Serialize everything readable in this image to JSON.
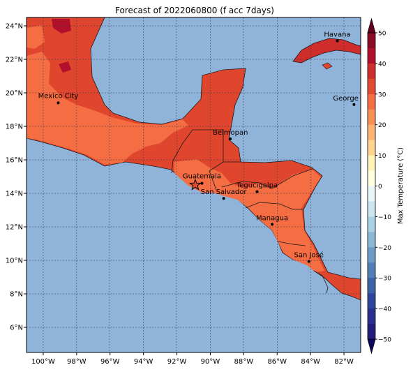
{
  "title": "Forecast of 2022060800 (f acc 7days)",
  "map": {
    "lon_range": [
      -101,
      -81
    ],
    "lat_range": [
      4.5,
      24.5
    ],
    "x_ticks": [
      {
        "value": -100,
        "label": "100°W"
      },
      {
        "value": -98,
        "label": "98°W"
      },
      {
        "value": -96,
        "label": "96°W"
      },
      {
        "value": -94,
        "label": "94°W"
      },
      {
        "value": -92,
        "label": "92°W"
      },
      {
        "value": -90,
        "label": "90°W"
      },
      {
        "value": -88,
        "label": "88°W"
      },
      {
        "value": -86,
        "label": "86°W"
      },
      {
        "value": -84,
        "label": "84°W"
      },
      {
        "value": -82,
        "label": "82°W"
      }
    ],
    "y_ticks": [
      {
        "value": 6,
        "label": "6°N"
      },
      {
        "value": 8,
        "label": "8°N"
      },
      {
        "value": 10,
        "label": "10°N"
      },
      {
        "value": 12,
        "label": "12°N"
      },
      {
        "value": 14,
        "label": "14°N"
      },
      {
        "value": 16,
        "label": "16°N"
      },
      {
        "value": 18,
        "label": "18°N"
      },
      {
        "value": 20,
        "label": "20°N"
      },
      {
        "value": 22,
        "label": "22°N"
      },
      {
        "value": 24,
        "label": "24°N"
      }
    ],
    "ocean_color": "#8fb3d9",
    "cities": [
      {
        "name": "Havana",
        "lon": -82.4,
        "lat": 23.1
      },
      {
        "name": "Mexico City",
        "lon": -99.1,
        "lat": 19.4
      },
      {
        "name": "George Town",
        "lon": -81.4,
        "lat": 19.3
      },
      {
        "name": "Belmopan",
        "lon": -88.8,
        "lat": 17.25
      },
      {
        "name": "Guatemala",
        "lon": -90.5,
        "lat": 14.6
      },
      {
        "name": "San Salvador",
        "lon": -89.2,
        "lat": 13.7
      },
      {
        "name": "Tegucigalpa",
        "lon": -87.2,
        "lat": 14.1
      },
      {
        "name": "Managua",
        "lon": -86.3,
        "lat": 12.15
      },
      {
        "name": "San José",
        "lon": -84.1,
        "lat": 9.93
      }
    ],
    "star_marker": {
      "lon": -90.9,
      "lat": 14.5
    }
  },
  "colorbar": {
    "label": "Max Temperature (°C)",
    "ticks": [
      {
        "value": 50,
        "label": "50"
      },
      {
        "value": 40,
        "label": "40"
      },
      {
        "value": 30,
        "label": "30"
      },
      {
        "value": 20,
        "label": "20"
      },
      {
        "value": 10,
        "label": "10"
      },
      {
        "value": 0,
        "label": "0"
      },
      {
        "value": -10,
        "label": "−10"
      },
      {
        "value": -20,
        "label": "−20"
      },
      {
        "value": -30,
        "label": "−30"
      },
      {
        "value": -40,
        "label": "−40"
      },
      {
        "value": -50,
        "label": "−50"
      }
    ],
    "bands": [
      {
        "from": 45,
        "to": 50,
        "color": "#8b0a26"
      },
      {
        "from": 40,
        "to": 45,
        "color": "#b1102b"
      },
      {
        "from": 35,
        "to": 40,
        "color": "#cf2d2b"
      },
      {
        "from": 30,
        "to": 35,
        "color": "#e34a33"
      },
      {
        "from": 25,
        "to": 30,
        "color": "#f46d43"
      },
      {
        "from": 20,
        "to": 25,
        "color": "#f99157"
      },
      {
        "from": 15,
        "to": 20,
        "color": "#fdb374"
      },
      {
        "from": 10,
        "to": 15,
        "color": "#fed490"
      },
      {
        "from": 5,
        "to": 10,
        "color": "#fff3b8"
      },
      {
        "from": 0,
        "to": 5,
        "color": "#ffffdf"
      },
      {
        "from": -5,
        "to": 0,
        "color": "#e9f6f8"
      },
      {
        "from": -10,
        "to": -5,
        "color": "#cce6f0"
      },
      {
        "from": -15,
        "to": -10,
        "color": "#aad0e5"
      },
      {
        "from": -20,
        "to": -15,
        "color": "#89b7d6"
      },
      {
        "from": -25,
        "to": -20,
        "color": "#6d9cc7"
      },
      {
        "from": -30,
        "to": -25,
        "color": "#5280b6"
      },
      {
        "from": -35,
        "to": -30,
        "color": "#3c62a8"
      },
      {
        "from": -40,
        "to": -35,
        "color": "#2f449b"
      },
      {
        "from": -45,
        "to": -40,
        "color": "#2a2e8f"
      },
      {
        "from": -50,
        "to": -45,
        "color": "#221c7a"
      }
    ],
    "over_color": "#67001f",
    "under_color": "#0c0a5e"
  }
}
